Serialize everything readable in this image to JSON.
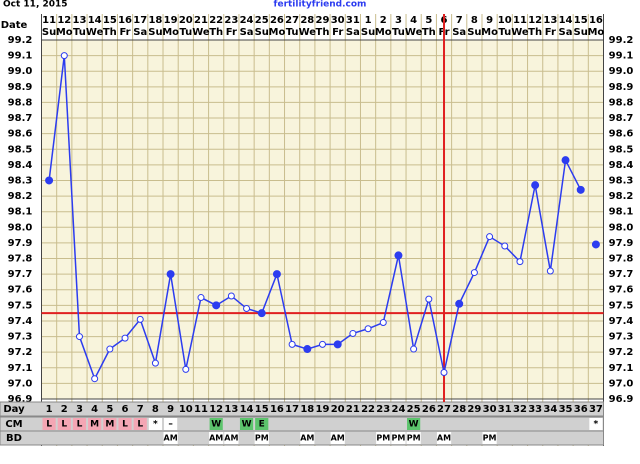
{
  "chart_data": {
    "type": "line",
    "title": "Oct 11, 2015",
    "source": "fertilityfriend.com",
    "date_label": "Date",
    "day_label": "Day",
    "cm_label": "CM",
    "bd_label": "BD",
    "dates": [
      "11",
      "12",
      "13",
      "14",
      "15",
      "16",
      "17",
      "18",
      "19",
      "20",
      "21",
      "22",
      "23",
      "24",
      "25",
      "26",
      "27",
      "28",
      "29",
      "30",
      "31",
      "1",
      "2",
      "3",
      "4",
      "5",
      "6",
      "7",
      "8",
      "9",
      "10",
      "11",
      "12",
      "13",
      "14",
      "15",
      "16"
    ],
    "weekdays": [
      "Su",
      "Mo",
      "Tu",
      "We",
      "Th",
      "Fr",
      "Sa",
      "Su",
      "Mo",
      "Tu",
      "We",
      "Th",
      "Fr",
      "Sa",
      "Su",
      "Mo",
      "Tu",
      "We",
      "Th",
      "Fr",
      "Sa",
      "Su",
      "Mo",
      "Tu",
      "We",
      "Th",
      "Fr",
      "Sa",
      "Su",
      "Mo",
      "Tu",
      "We",
      "Th",
      "Fr",
      "Sa",
      "Su",
      "Mo"
    ],
    "days": [
      1,
      2,
      3,
      4,
      5,
      6,
      7,
      8,
      9,
      10,
      11,
      12,
      13,
      14,
      15,
      16,
      17,
      18,
      19,
      20,
      21,
      22,
      23,
      24,
      25,
      26,
      27,
      28,
      29,
      30,
      31,
      32,
      33,
      34,
      35,
      36,
      37
    ],
    "cm": [
      "L",
      "L",
      "L",
      "M",
      "M",
      "L",
      "L",
      "*",
      "–",
      null,
      null,
      "W",
      null,
      "W",
      "E",
      null,
      null,
      null,
      null,
      null,
      null,
      null,
      null,
      null,
      "W",
      null,
      null,
      null,
      null,
      null,
      null,
      null,
      null,
      null,
      null,
      null,
      "*"
    ],
    "cm_colors": {
      "L": "#f4a6b4",
      "M": "#f4a6b4",
      "W": "#5cc46c",
      "E": "#5cc46c",
      "*": "#ffffff",
      "–": "#ffffff"
    },
    "bd": [
      null,
      null,
      null,
      null,
      null,
      null,
      null,
      null,
      "AM",
      null,
      null,
      "AM",
      "AM",
      null,
      "PM",
      null,
      null,
      "AM",
      null,
      "AM",
      null,
      null,
      "PM",
      "PM",
      "PM",
      null,
      "AM",
      null,
      null,
      "PM",
      null,
      null,
      null,
      null,
      null,
      null,
      null
    ],
    "series": [
      {
        "color": "#2c3cf0",
        "values": [
          98.3,
          99.1,
          97.3,
          97.03,
          97.22,
          97.29,
          97.41,
          97.13,
          97.7,
          97.09,
          97.55,
          97.5,
          97.56,
          97.48,
          97.45,
          97.7,
          97.25,
          97.22,
          97.25,
          97.25,
          97.32,
          97.35,
          97.39,
          97.82,
          97.22,
          97.54,
          97.07,
          97.51,
          97.71,
          97.94,
          97.88,
          97.78,
          98.27,
          97.72,
          98.43,
          98.24,
          null
        ],
        "marker_filled": [
          true,
          false,
          false,
          false,
          false,
          false,
          false,
          false,
          true,
          false,
          false,
          true,
          false,
          false,
          true,
          true,
          false,
          true,
          false,
          true,
          false,
          false,
          false,
          true,
          false,
          false,
          false,
          true,
          false,
          false,
          false,
          false,
          true,
          false,
          true,
          true,
          null
        ]
      },
      {
        "color": "#2c3cf0",
        "values": [
          null,
          null,
          null,
          null,
          null,
          null,
          null,
          null,
          null,
          null,
          null,
          null,
          null,
          null,
          null,
          null,
          null,
          null,
          null,
          null,
          null,
          null,
          null,
          null,
          null,
          null,
          null,
          null,
          null,
          null,
          null,
          null,
          null,
          null,
          null,
          null,
          97.89
        ],
        "marker_filled": [
          null,
          null,
          null,
          null,
          null,
          null,
          null,
          null,
          null,
          null,
          null,
          null,
          null,
          null,
          null,
          null,
          null,
          null,
          null,
          null,
          null,
          null,
          null,
          null,
          null,
          null,
          null,
          null,
          null,
          null,
          null,
          null,
          null,
          null,
          null,
          null,
          true
        ]
      }
    ],
    "coverline": 97.45,
    "ovulation_day": 27,
    "ylim": [
      96.9,
      99.2
    ],
    "yticks": [
      96.9,
      {
        "value": 97,
        "label": "97.0"
      },
      97.1,
      97.2,
      97.3,
      97.4,
      97.5,
      97.6,
      97.7,
      97.8,
      97.9,
      {
        "value": 98,
        "label": "98.0"
      },
      98.1,
      98.2,
      98.3,
      98.4,
      98.5,
      98.6,
      98.7,
      98.8,
      98.9,
      {
        "value": 99,
        "label": "99.0"
      },
      99.1,
      99.2
    ],
    "grid": true,
    "line_color": "#e02020"
  }
}
